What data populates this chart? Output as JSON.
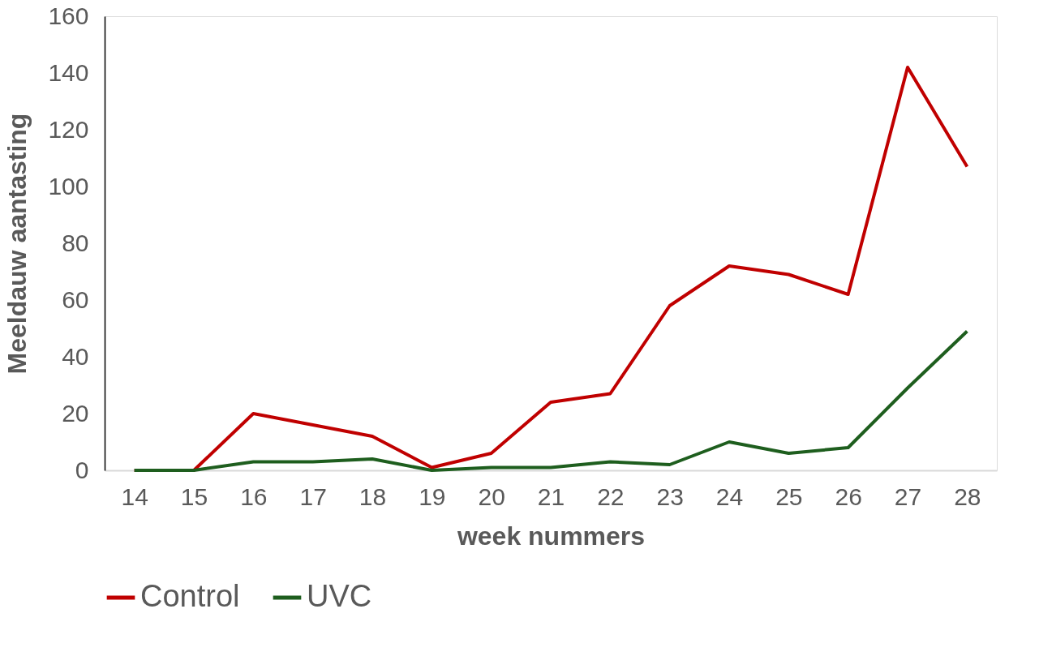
{
  "chart_data": {
    "type": "line",
    "xlabel": "week nummers",
    "ylabel": "Meeldauw aantasting",
    "categories": [
      "14",
      "15",
      "16",
      "17",
      "18",
      "19",
      "20",
      "21",
      "22",
      "23",
      "24",
      "25",
      "26",
      "27",
      "28"
    ],
    "series": [
      {
        "name": "Control",
        "color": "#c00000",
        "values": [
          0,
          0,
          20,
          16,
          12,
          1,
          6,
          24,
          27,
          58,
          72,
          69,
          62,
          142,
          107
        ]
      },
      {
        "name": "UVC",
        "color": "#1e5e1e",
        "values": [
          0,
          0,
          3,
          3,
          4,
          0,
          1,
          1,
          3,
          2,
          10,
          6,
          8,
          29,
          49
        ]
      }
    ],
    "ylim": [
      0,
      160
    ],
    "yticks": [
      0,
      20,
      40,
      60,
      80,
      100,
      120,
      140,
      160
    ],
    "grid": false,
    "legend": "bottom",
    "marker": "none",
    "line_style": "solid"
  }
}
